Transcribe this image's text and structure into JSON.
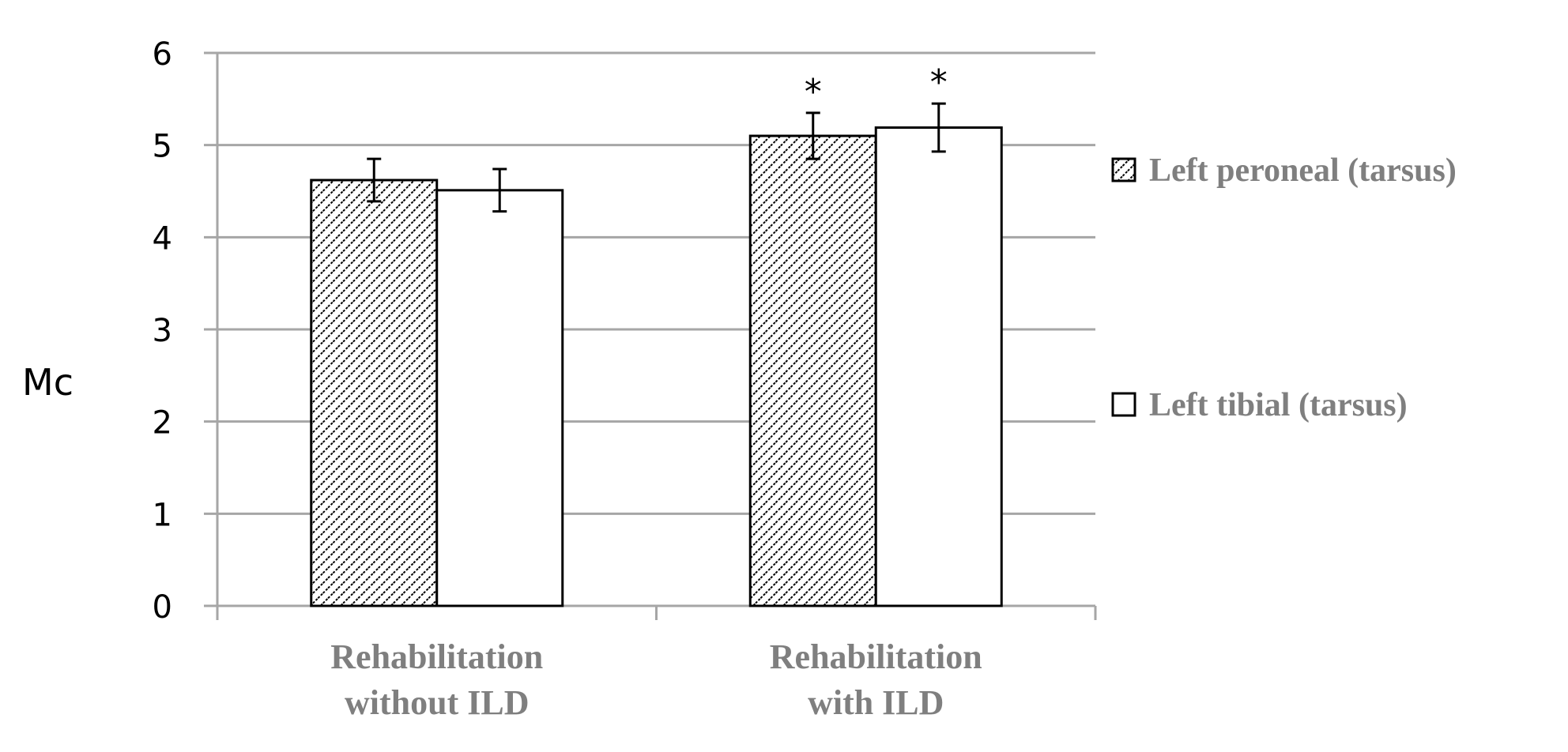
{
  "chart_data": {
    "type": "bar",
    "title": "",
    "xlabel": "",
    "ylabel": "Mc",
    "ylim": [
      0,
      6
    ],
    "yticks": [
      "0",
      "1",
      "2",
      "3",
      "4",
      "5",
      "6"
    ],
    "grid": true,
    "categories": [
      "Rehabilitation without ILD",
      "Rehabilitation with ILD"
    ],
    "category_lines": [
      [
        "Rehabilitation",
        "without ILD"
      ],
      [
        "Rehabilitation",
        "with ILD"
      ]
    ],
    "series": [
      {
        "name": "Left peroneal (tarsus)",
        "pattern": "diagonal-hatch",
        "values": [
          4.62,
          5.1
        ],
        "errors": [
          0.23,
          0.25
        ],
        "annotations": [
          "",
          "*"
        ]
      },
      {
        "name": "Left tibial (tarsus)",
        "pattern": "white",
        "values": [
          4.51,
          5.19
        ],
        "errors": [
          0.23,
          0.26
        ],
        "annotations": [
          "",
          "*"
        ]
      }
    ],
    "legend_position": "right",
    "colors": {
      "grid": "#a6a6a6",
      "text_gray": "#7f7f7f",
      "bar_edge": "#000000"
    }
  }
}
